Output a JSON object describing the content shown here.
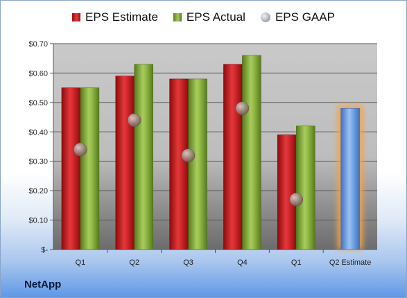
{
  "company": "NetApp",
  "legend": {
    "estimate": "EPS Estimate",
    "actual": "EPS Actual",
    "gaap": "EPS GAAP"
  },
  "colors": {
    "estimate": "#d0222a",
    "actual": "#8cb046",
    "gaap": "#9aa3b0",
    "projected": "#6f9fe0",
    "glow": "#f5a24a"
  },
  "chart_data": {
    "type": "bar",
    "categories": [
      "Q1",
      "Q2",
      "Q3",
      "Q4",
      "Q1",
      "Q2 Estimate"
    ],
    "series": [
      {
        "name": "EPS Estimate",
        "values": [
          0.55,
          0.59,
          0.58,
          0.63,
          0.39,
          null
        ]
      },
      {
        "name": "EPS Actual",
        "values": [
          0.55,
          0.63,
          0.58,
          0.66,
          0.42,
          null
        ]
      },
      {
        "name": "EPS GAAP",
        "values": [
          0.34,
          0.44,
          0.32,
          0.48,
          0.17,
          null
        ]
      }
    ],
    "projection": {
      "category": "Q2 Estimate",
      "value": 0.48
    },
    "ylim": [
      0,
      0.7
    ],
    "yticks": [
      0,
      0.1,
      0.2,
      0.3,
      0.4,
      0.5,
      0.6,
      0.7
    ],
    "ytick_labels": [
      "$-",
      "$0.10",
      "$0.20",
      "$0.30",
      "$0.40",
      "$0.50",
      "$0.60",
      "$0.70"
    ],
    "grid": true,
    "legend_position": "top"
  }
}
